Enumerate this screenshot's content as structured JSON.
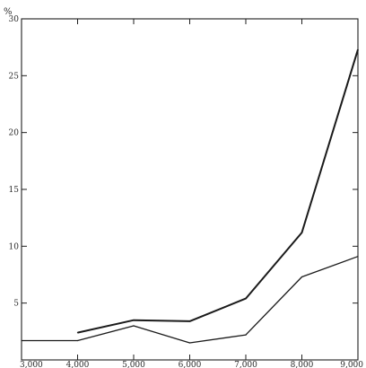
{
  "chart_data": {
    "type": "line",
    "title": "",
    "xlabel": "",
    "ylabel": "%",
    "x": [
      3000,
      4000,
      5000,
      6000,
      7000,
      8000,
      9000
    ],
    "x_tick_labels": [
      "3,000",
      "4,000",
      "5,000",
      "6,000",
      "7,000",
      "8,000",
      "9,000"
    ],
    "y_tick_labels": [
      "5",
      "10",
      "15",
      "20",
      "25",
      "30"
    ],
    "y_tick_values": [
      5,
      10,
      15,
      20,
      25,
      30
    ],
    "xlim": [
      3000,
      9000
    ],
    "ylim": [
      0,
      30
    ],
    "grid": false,
    "series": [
      {
        "x": [
          4000,
          5000,
          6000,
          7000,
          8000,
          9000
        ],
        "values": [
          2.4,
          3.5,
          3.4,
          5.4,
          11.2,
          27.3
        ],
        "color": "#1a1a1a"
      },
      {
        "x": [
          3000,
          4000,
          5000,
          6000,
          7000,
          8000,
          9000
        ],
        "values": [
          1.7,
          1.7,
          3.0,
          1.5,
          2.2,
          7.3,
          9.1
        ],
        "color": "#1a1a1a"
      }
    ]
  }
}
